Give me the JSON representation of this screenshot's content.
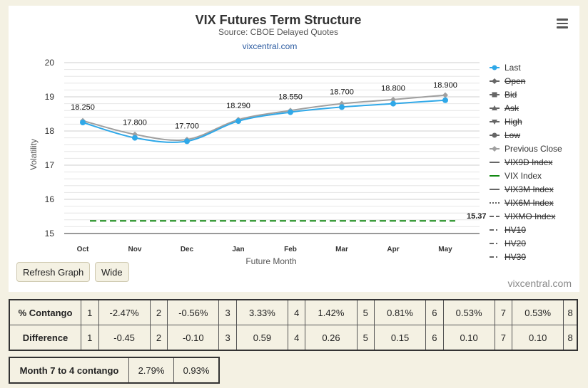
{
  "chart_data": {
    "type": "line",
    "title": "VIX Futures Term Structure",
    "subtitle": "Source: CBOE Delayed Quotes",
    "source_link": "vixcentral.com",
    "watermark": "vixcentral.com",
    "xlabel": "Future Month",
    "ylabel": "Volatility",
    "categories": [
      "Oct",
      "Nov",
      "Dec",
      "Jan",
      "Feb",
      "Mar",
      "Apr",
      "May"
    ],
    "ylim": [
      15,
      20
    ],
    "yticks": [
      "15",
      "16",
      "17",
      "18",
      "19",
      "20"
    ],
    "series": [
      {
        "name": "Last",
        "values": [
          18.25,
          17.8,
          17.7,
          18.29,
          18.55,
          18.7,
          18.8,
          18.9
        ],
        "labels": [
          "18.250",
          "17.800",
          "17.700",
          "18.290",
          "18.550",
          "18.700",
          "18.800",
          "18.900"
        ],
        "color": "#2fa8e8"
      },
      {
        "name": "Previous Close",
        "values": [
          18.3,
          17.9,
          17.75,
          18.33,
          18.6,
          18.8,
          18.92,
          19.05
        ],
        "color": "#a0a0a0"
      },
      {
        "name": "VIX Index",
        "values": [
          15.37,
          15.37,
          15.37,
          15.37,
          15.37,
          15.37,
          15.37,
          15.37
        ],
        "end_label": "15.37",
        "color": "#118811"
      }
    ],
    "legend": {
      "placement": "right",
      "items": [
        {
          "name": "Last",
          "disabled": false,
          "color": "#2fa8e8",
          "symbol": "circle",
          "line": "solid"
        },
        {
          "name": "Open",
          "disabled": true,
          "color": "#666666",
          "symbol": "diamond",
          "line": "solid"
        },
        {
          "name": "Bid",
          "disabled": true,
          "color": "#666666",
          "symbol": "square",
          "line": "solid"
        },
        {
          "name": "Ask",
          "disabled": true,
          "color": "#666666",
          "symbol": "triangle",
          "line": "solid"
        },
        {
          "name": "High",
          "disabled": true,
          "color": "#666666",
          "symbol": "triangle-down",
          "line": "solid"
        },
        {
          "name": "Low",
          "disabled": true,
          "color": "#666666",
          "symbol": "circle",
          "line": "solid"
        },
        {
          "name": "Previous Close",
          "disabled": false,
          "color": "#a0a0a0",
          "symbol": "diamond",
          "line": "solid"
        },
        {
          "name": "VIX9D Index",
          "disabled": true,
          "color": "#666666",
          "symbol": "none",
          "line": "solid"
        },
        {
          "name": "VIX Index",
          "disabled": false,
          "color": "#118811",
          "symbol": "none",
          "line": "solid"
        },
        {
          "name": "VIX3M Index",
          "disabled": true,
          "color": "#666666",
          "symbol": "none",
          "line": "solid"
        },
        {
          "name": "VIX6M Index",
          "disabled": true,
          "color": "#666666",
          "symbol": "none",
          "line": "dotted"
        },
        {
          "name": "VIXMO Index",
          "disabled": true,
          "color": "#666666",
          "symbol": "none",
          "line": "dashed"
        },
        {
          "name": "HV10",
          "disabled": true,
          "color": "#666666",
          "symbol": "none",
          "line": "dashdot"
        },
        {
          "name": "HV20",
          "disabled": true,
          "color": "#666666",
          "symbol": "none",
          "line": "dashdot"
        },
        {
          "name": "HV30",
          "disabled": true,
          "color": "#666666",
          "symbol": "none",
          "line": "dashdot"
        }
      ]
    },
    "grid": true
  },
  "buttons": {
    "refresh": "Refresh Graph",
    "wide": "Wide"
  },
  "menu_icon": "hamburger-menu-icon",
  "contango_table": {
    "rows": [
      {
        "label": "% Contango",
        "cells": [
          "1",
          "-2.47%",
          "2",
          "-0.56%",
          "3",
          "3.33%",
          "4",
          "1.42%",
          "5",
          "0.81%",
          "6",
          "0.53%",
          "7",
          "0.53%",
          "8"
        ]
      },
      {
        "label": "Difference",
        "cells": [
          "1",
          "-0.45",
          "2",
          "-0.10",
          "3",
          "0.59",
          "4",
          "0.26",
          "5",
          "0.15",
          "6",
          "0.10",
          "7",
          "0.10",
          "8"
        ]
      }
    ]
  },
  "month_table": {
    "label": "Month 7 to 4 contango",
    "value1": "2.79%",
    "value2": "0.93%"
  }
}
